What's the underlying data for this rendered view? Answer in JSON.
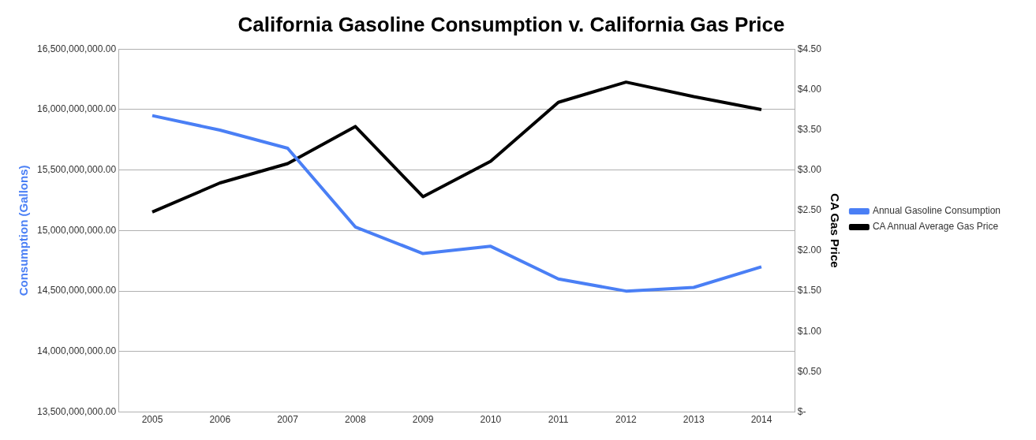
{
  "chart_data": {
    "type": "line",
    "title": "California Gasoline Consumption v. California Gas Price",
    "ylabel": "Consumption (Gallons)",
    "y2label": "CA Gas Price",
    "categories": [
      "2005",
      "2006",
      "2007",
      "2008",
      "2009",
      "2010",
      "2011",
      "2012",
      "2013",
      "2014"
    ],
    "series": [
      {
        "name": "Annual Gasoline Consumption",
        "color": "#4a7ff5",
        "values": [
          15950000000,
          15830000000,
          15680000000,
          15030000000,
          14810000000,
          14870000000,
          14600000000,
          14500000000,
          14530000000,
          14700000000
        ]
      },
      {
        "name": "CA Annual Average Gas Price",
        "color": "#000000",
        "axis": "y2",
        "values": [
          2.48,
          2.84,
          3.08,
          3.54,
          2.67,
          3.11,
          3.84,
          4.09,
          3.91,
          3.75
        ]
      }
    ],
    "ylim": [
      13500000000,
      16500000000
    ],
    "yticks": [
      {
        "value": 13500000000,
        "label": "13,500,000,000.00"
      },
      {
        "value": 14000000000,
        "label": "14,000,000,000.00"
      },
      {
        "value": 14500000000,
        "label": "14,500,000,000.00"
      },
      {
        "value": 15000000000,
        "label": "15,000,000,000.00"
      },
      {
        "value": 15500000000,
        "label": "15,500,000,000.00"
      },
      {
        "value": 16000000000,
        "label": "16,000,000,000.00"
      },
      {
        "value": 16500000000,
        "label": "16,500,000,000.00"
      }
    ],
    "y2lim": [
      0,
      4.5
    ],
    "y2ticks": [
      {
        "value": 0,
        "label": "$-"
      },
      {
        "value": 0.5,
        "label": "$0.50"
      },
      {
        "value": 1,
        "label": "$1.00"
      },
      {
        "value": 1.5,
        "label": "$1.50"
      },
      {
        "value": 2,
        "label": "$2.00"
      },
      {
        "value": 2.5,
        "label": "$2.50"
      },
      {
        "value": 3,
        "label": "$3.00"
      },
      {
        "value": 3.5,
        "label": "$3.50"
      },
      {
        "value": 4,
        "label": "$4.00"
      },
      {
        "value": 4.5,
        "label": "$4.50"
      }
    ],
    "grid": "y",
    "legend": "right",
    "marker": "none",
    "line_style": "solid"
  }
}
